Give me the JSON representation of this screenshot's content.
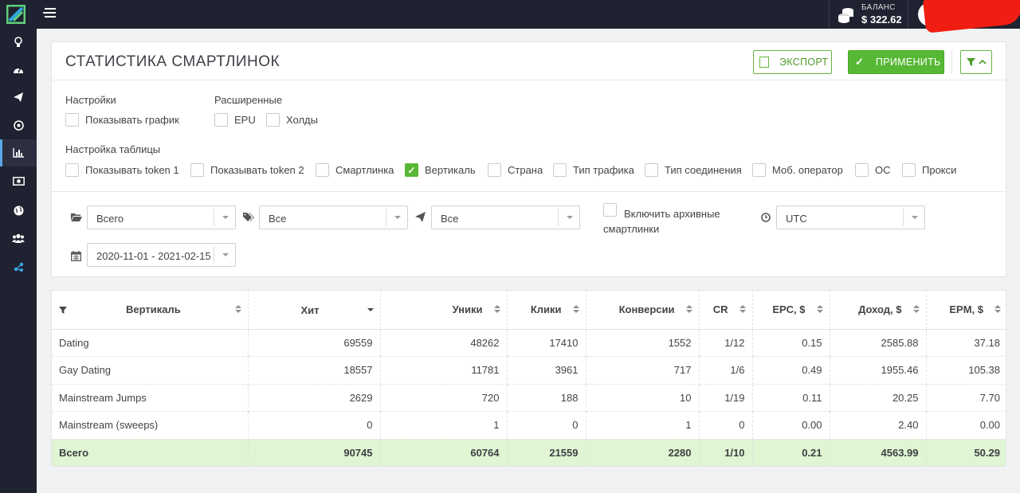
{
  "topbar": {
    "balance_label": "БАЛАНС",
    "balance_value": "$ 322.62"
  },
  "sidebar": {
    "items": [
      {
        "icon": "lightbulb-icon"
      },
      {
        "icon": "dashboard-icon"
      },
      {
        "icon": "paper-plane-icon"
      },
      {
        "icon": "target-icon"
      },
      {
        "icon": "bar-chart-icon",
        "active": true
      },
      {
        "icon": "money-icon"
      },
      {
        "icon": "globe-icon"
      },
      {
        "icon": "users-icon"
      },
      {
        "icon": "network-icon"
      }
    ]
  },
  "header": {
    "title": "СТАТИСТИКА СМАРТЛИНОК",
    "export_label": "ЭКСПОРТ",
    "apply_label": "ПРИМЕНИТЬ"
  },
  "settings": {
    "label": "Настройки",
    "show_chart": "Показывать график"
  },
  "advanced": {
    "label": "Расширенные",
    "epu": "EPU",
    "holds": "Холды"
  },
  "table_settings": {
    "label": "Настройка таблицы",
    "options": [
      {
        "label": "Показывать token 1",
        "checked": false
      },
      {
        "label": "Показывать token 2",
        "checked": false
      },
      {
        "label": "Смартлинка",
        "checked": false
      },
      {
        "label": "Вертикаль",
        "checked": true
      },
      {
        "label": "Страна",
        "checked": false
      },
      {
        "label": "Тип трафика",
        "checked": false
      },
      {
        "label": "Тип соединения",
        "checked": false
      },
      {
        "label": "Моб. оператор",
        "checked": false
      },
      {
        "label": "ОС",
        "checked": false
      },
      {
        "label": "Прокси",
        "checked": false
      }
    ]
  },
  "filters": {
    "folder_value": "Всего",
    "tags_value": "Все",
    "plane_value": "Все",
    "archive_label": "Включить архивные смартлинки",
    "timezone_value": "UTC",
    "date_range": "2020-11-01 - 2021-02-15"
  },
  "table": {
    "headers": [
      "Вертикаль",
      "Хит",
      "Уники",
      "Клики",
      "Конверсии",
      "CR",
      "EPC, $",
      "Доход, $",
      "EPM, $"
    ],
    "rows": [
      [
        "Dating",
        "69559",
        "48262",
        "17410",
        "1552",
        "1/12",
        "0.15",
        "2585.88",
        "37.18"
      ],
      [
        "Gay Dating",
        "18557",
        "11781",
        "3961",
        "717",
        "1/6",
        "0.49",
        "1955.46",
        "105.38"
      ],
      [
        "Mainstream Jumps",
        "2629",
        "720",
        "188",
        "10",
        "1/19",
        "0.11",
        "20.25",
        "7.70"
      ],
      [
        "Mainstream (sweeps)",
        "0",
        "1",
        "0",
        "1",
        "0",
        "0.00",
        "2.40",
        "0.00"
      ]
    ],
    "total": [
      "Всего",
      "90745",
      "60764",
      "21559",
      "2280",
      "1/10",
      "0.21",
      "4563.99",
      "50.29"
    ]
  },
  "colors": {
    "accent_green": "#57b835",
    "topbar_bg": "#1f2230",
    "total_row_bg": "#dff5d3"
  }
}
